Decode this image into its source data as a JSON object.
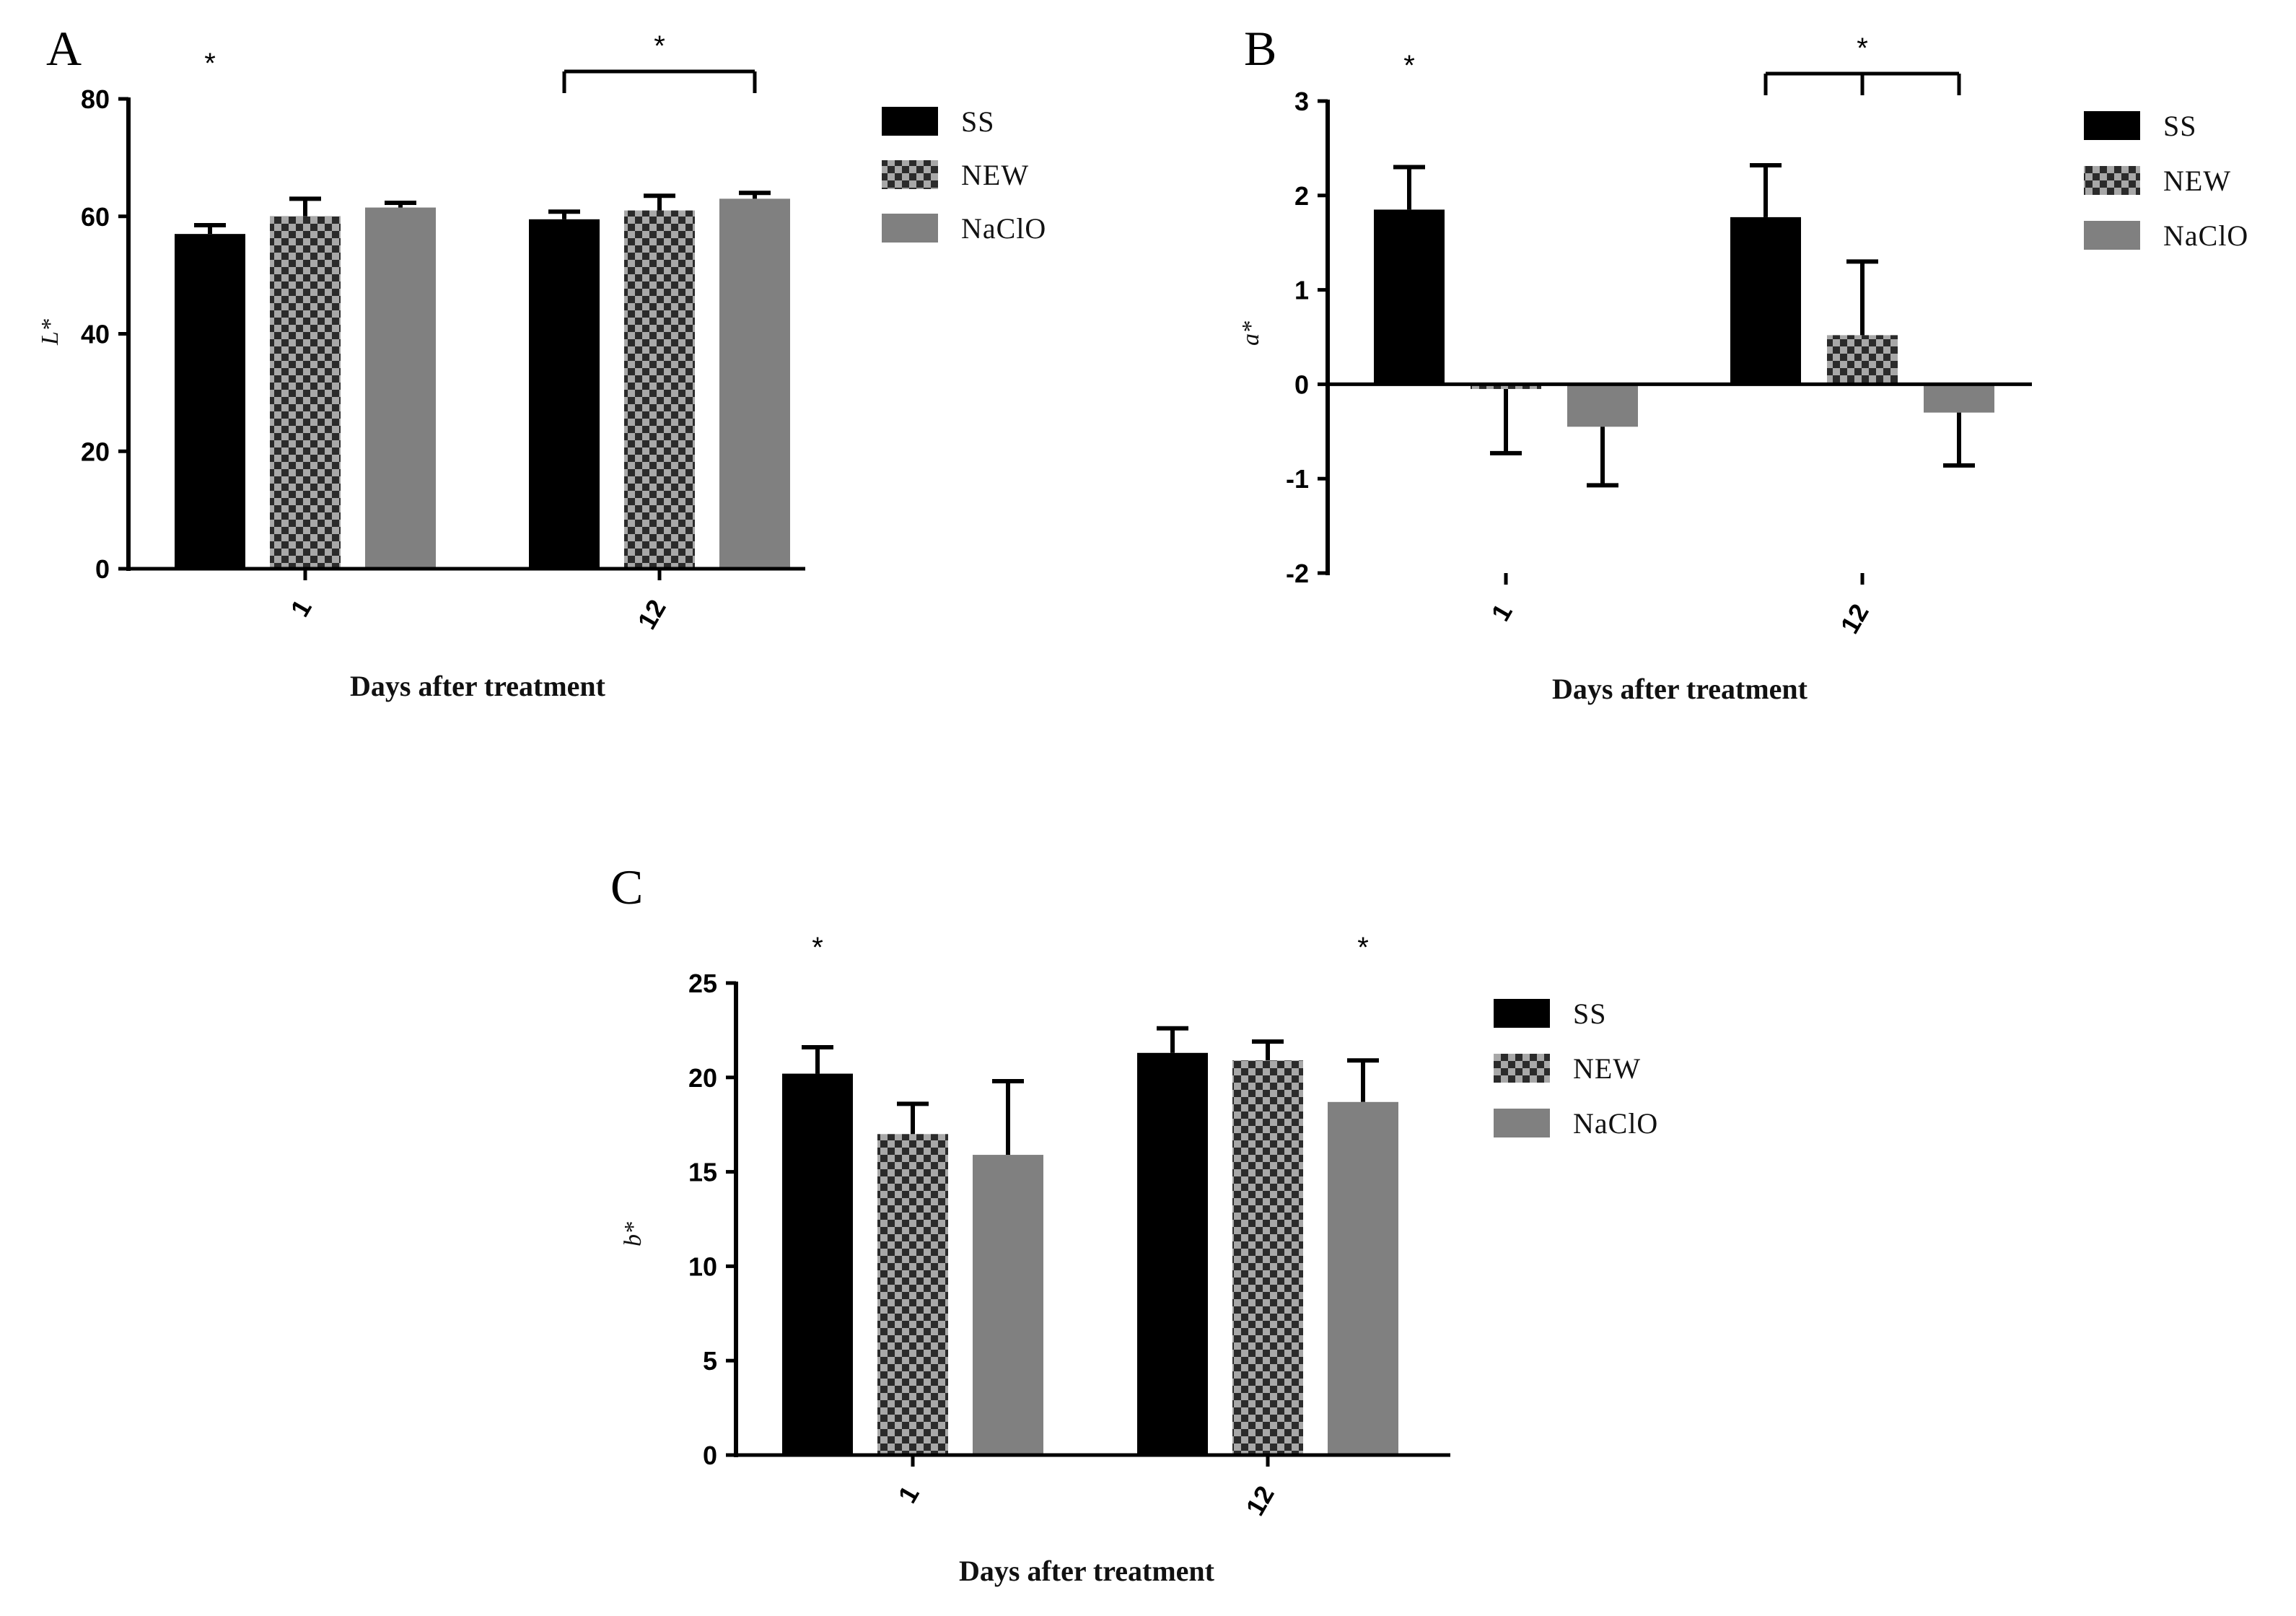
{
  "colors": {
    "ss": "#000000",
    "new_dark": "#2b2b2b",
    "new_light": "#a8a8a8",
    "naclo": "#808080",
    "axis": "#000000",
    "error": "#000000"
  },
  "chart_data": [
    {
      "panel": "A",
      "type": "bar",
      "categories": [
        "1",
        "12"
      ],
      "series": [
        {
          "name": "SS",
          "values": [
            57,
            59.5
          ],
          "errors": [
            1.5,
            1.3
          ]
        },
        {
          "name": "NEW",
          "values": [
            60,
            61
          ],
          "errors": [
            3,
            2.5
          ]
        },
        {
          "name": "NaClO",
          "values": [
            61.5,
            63
          ],
          "errors": [
            0.8,
            1
          ]
        }
      ],
      "xlabel": "Days after treatment",
      "ylabel": "L*",
      "ylim": [
        0,
        80
      ],
      "yticks": [
        0,
        20,
        40,
        60,
        80
      ],
      "legend": [
        "SS",
        "NEW",
        "NaClO"
      ],
      "legend_position": "right",
      "annotations": [
        {
          "text": "*",
          "target": "day 1 SS",
          "type": "star"
        },
        {
          "text": "*",
          "target": "day 12 SS vs NaClO",
          "type": "bracket"
        }
      ]
    },
    {
      "panel": "B",
      "type": "bar",
      "categories": [
        "1",
        "12"
      ],
      "series": [
        {
          "name": "SS",
          "values": [
            1.85,
            1.77
          ],
          "errors": [
            0.45,
            0.55
          ]
        },
        {
          "name": "NEW",
          "values": [
            -0.05,
            0.52
          ],
          "errors": [
            0.68,
            0.78
          ]
        },
        {
          "name": "NaClO",
          "values": [
            -0.45,
            -0.3
          ],
          "errors": [
            0.62,
            0.56
          ]
        }
      ],
      "xlabel": "Days after treatment",
      "ylabel": "a*",
      "ylim": [
        -2,
        3
      ],
      "yticks": [
        -2,
        -1,
        0,
        1,
        2,
        3
      ],
      "legend": [
        "SS",
        "NEW",
        "NaClO"
      ],
      "legend_position": "right",
      "annotations": [
        {
          "text": "*",
          "target": "day 1 SS",
          "type": "star"
        },
        {
          "text": "*",
          "target": "day 12 SS vs NEW vs NaClO",
          "type": "bracket"
        }
      ]
    },
    {
      "panel": "C",
      "type": "bar",
      "categories": [
        "1",
        "12"
      ],
      "series": [
        {
          "name": "SS",
          "values": [
            20.2,
            21.3
          ],
          "errors": [
            1.4,
            1.3
          ]
        },
        {
          "name": "NEW",
          "values": [
            17,
            20.9
          ],
          "errors": [
            1.6,
            1
          ]
        },
        {
          "name": "NaClO",
          "values": [
            15.9,
            18.7
          ],
          "errors": [
            3.9,
            2.2
          ]
        }
      ],
      "xlabel": "Days after treatment",
      "ylabel": "b*",
      "ylim": [
        0,
        25
      ],
      "yticks": [
        0,
        5,
        10,
        15,
        20,
        25
      ],
      "legend": [
        "SS",
        "NEW",
        "NaClO"
      ],
      "legend_position": "right",
      "annotations": [
        {
          "text": "*",
          "target": "day 1 SS",
          "type": "star"
        },
        {
          "text": "*",
          "target": "day 12 NaClO",
          "type": "star"
        }
      ]
    }
  ]
}
